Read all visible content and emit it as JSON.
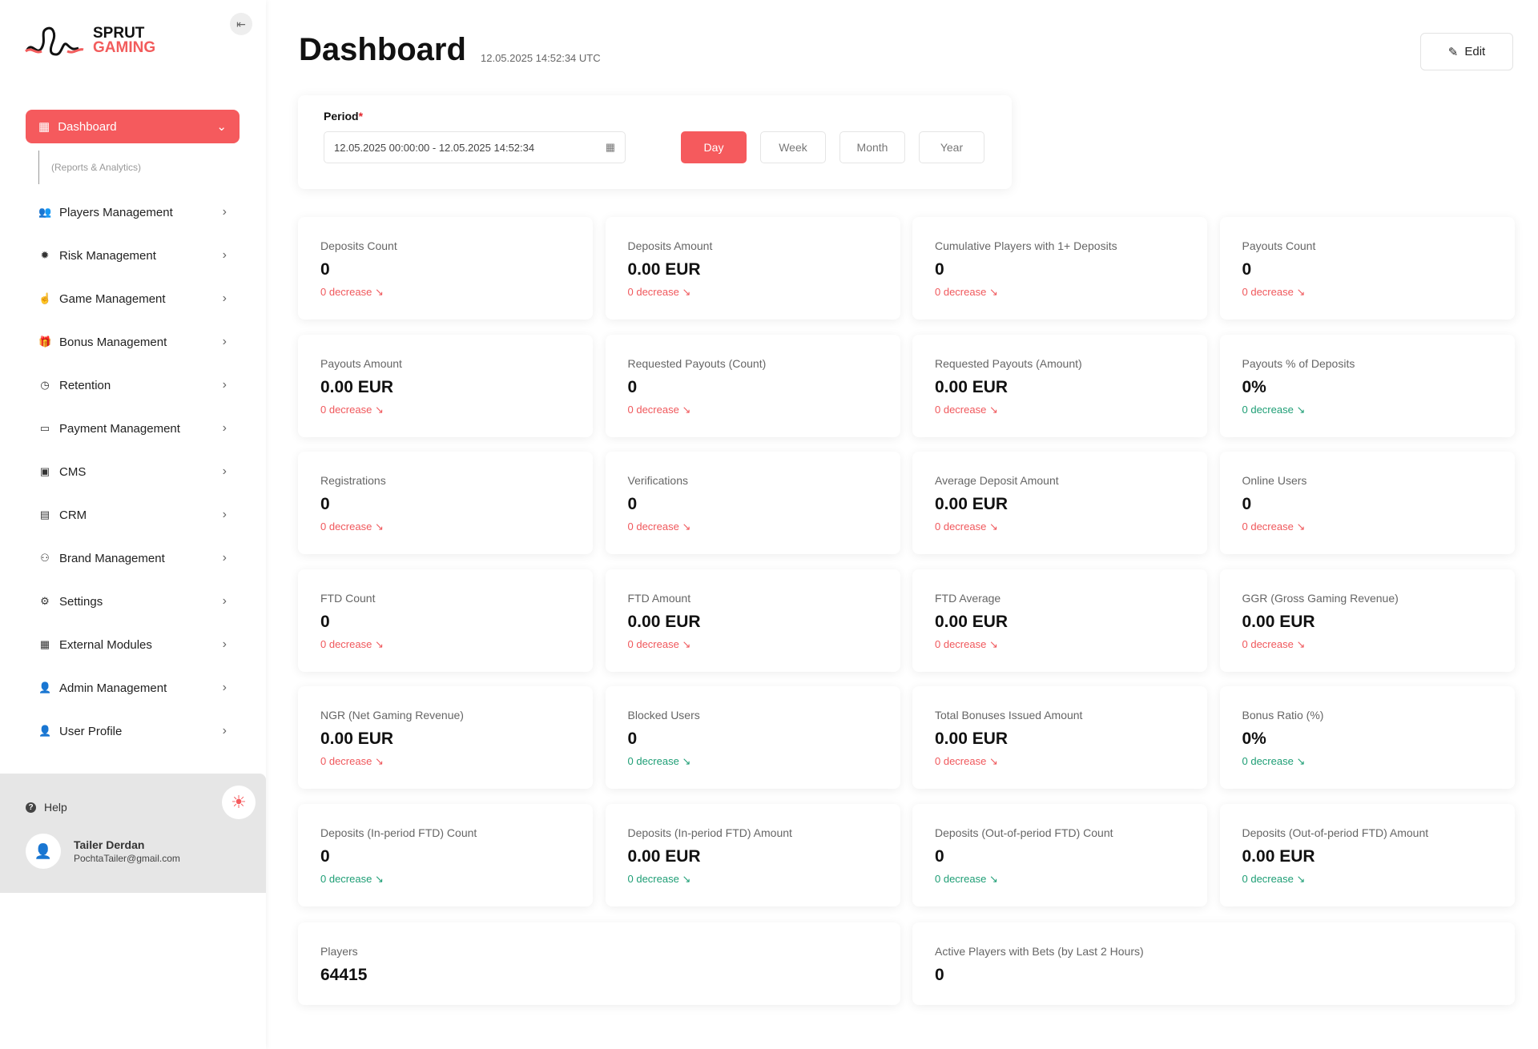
{
  "brand": {
    "line1": "SPRUT",
    "line2": "GAMING"
  },
  "sidebar": {
    "active": {
      "label": "Dashboard",
      "sub": "(Reports & Analytics)"
    },
    "items": [
      {
        "label": "Players Management",
        "icon": "users-icon",
        "g": "👥"
      },
      {
        "label": "Risk Management",
        "icon": "virus-icon",
        "g": "✹"
      },
      {
        "label": "Game Management",
        "icon": "hand-pointer-icon",
        "g": "☝"
      },
      {
        "label": "Bonus Management",
        "icon": "gift-icon",
        "g": "🎁"
      },
      {
        "label": "Retention",
        "icon": "clock-icon",
        "g": "◷"
      },
      {
        "label": "Payment Management",
        "icon": "credit-card-icon",
        "g": "▭"
      },
      {
        "label": "CMS",
        "icon": "cms-icon",
        "g": "▣"
      },
      {
        "label": "CRM",
        "icon": "clipboard-icon",
        "g": "▤"
      },
      {
        "label": "Brand Management",
        "icon": "brand-icon",
        "g": "⚇"
      },
      {
        "label": "Settings",
        "icon": "gears-icon",
        "g": "⚙"
      },
      {
        "label": "External Modules",
        "icon": "grid-icon",
        "g": "▦"
      },
      {
        "label": "Admin Management",
        "icon": "user-gear-icon",
        "g": "👤"
      },
      {
        "label": "User Profile",
        "icon": "user-icon",
        "g": "👤"
      }
    ],
    "help": "Help",
    "user": {
      "name": "Tailer Derdan",
      "email": "PochtaTailer@gmail.com"
    }
  },
  "header": {
    "title": "Dashboard",
    "timestamp": "12.05.2025 14:52:34 UTC",
    "edit": "Edit"
  },
  "period": {
    "label": "Period",
    "required": "*",
    "value": "12.05.2025 00:00:00 - 12.05.2025 14:52:34",
    "buttons": [
      "Day",
      "Week",
      "Month",
      "Year"
    ],
    "active": "Day"
  },
  "colors": {
    "accent": "#f55a5d",
    "decrease_red": "#f0585c",
    "decrease_green": "#1e9e75"
  },
  "cards": [
    {
      "label": "Deposits Count",
      "value": "0",
      "trend": "0 decrease",
      "tone": "red"
    },
    {
      "label": "Deposits Amount",
      "value": "0.00 EUR",
      "trend": "0 decrease",
      "tone": "red"
    },
    {
      "label": "Cumulative Players with 1+ Deposits",
      "value": "0",
      "trend": "0 decrease",
      "tone": "red"
    },
    {
      "label": "Payouts Count",
      "value": "0",
      "trend": "0 decrease",
      "tone": "red"
    },
    {
      "label": "Payouts Amount",
      "value": "0.00 EUR",
      "trend": "0 decrease",
      "tone": "red"
    },
    {
      "label": "Requested Payouts (Count)",
      "value": "0",
      "trend": "0 decrease",
      "tone": "red"
    },
    {
      "label": "Requested Payouts (Amount)",
      "value": "0.00 EUR",
      "trend": "0 decrease",
      "tone": "red"
    },
    {
      "label": "Payouts % of Deposits",
      "value": "0%",
      "trend": "0 decrease",
      "tone": "green"
    },
    {
      "label": "Registrations",
      "value": "0",
      "trend": "0 decrease",
      "tone": "red"
    },
    {
      "label": "Verifications",
      "value": "0",
      "trend": "0 decrease",
      "tone": "red"
    },
    {
      "label": "Average Deposit Amount",
      "value": "0.00 EUR",
      "trend": "0 decrease",
      "tone": "red"
    },
    {
      "label": "Online Users",
      "value": "0",
      "trend": "0 decrease",
      "tone": "red"
    },
    {
      "label": "FTD Count",
      "value": "0",
      "trend": "0 decrease",
      "tone": "red"
    },
    {
      "label": "FTD Amount",
      "value": "0.00 EUR",
      "trend": "0 decrease",
      "tone": "red"
    },
    {
      "label": "FTD Average",
      "value": "0.00 EUR",
      "trend": "0 decrease",
      "tone": "red"
    },
    {
      "label": "GGR (Gross Gaming Revenue)",
      "value": "0.00 EUR",
      "trend": "0 decrease",
      "tone": "red"
    },
    {
      "label": "NGR (Net Gaming Revenue)",
      "value": "0.00 EUR",
      "trend": "0 decrease",
      "tone": "red"
    },
    {
      "label": "Blocked Users",
      "value": "0",
      "trend": "0 decrease",
      "tone": "green"
    },
    {
      "label": "Total Bonuses Issued Amount",
      "value": "0.00 EUR",
      "trend": "0 decrease",
      "tone": "red"
    },
    {
      "label": "Bonus Ratio (%)",
      "value": "0%",
      "trend": "0 decrease",
      "tone": "green"
    },
    {
      "label": "Deposits (In-period FTD) Count",
      "value": "0",
      "trend": "0 decrease",
      "tone": "green"
    },
    {
      "label": "Deposits (In-period FTD) Amount",
      "value": "0.00 EUR",
      "trend": "0 decrease",
      "tone": "green"
    },
    {
      "label": "Deposits (Out-of-period FTD) Count",
      "value": "0",
      "trend": "0 decrease",
      "tone": "green"
    },
    {
      "label": "Deposits (Out-of-period FTD) Amount",
      "value": "0.00 EUR",
      "trend": "0 decrease",
      "tone": "green"
    }
  ],
  "wide_cards": [
    {
      "label": "Players",
      "value": "64415"
    },
    {
      "label": "Active Players with Bets (by Last 2 Hours)",
      "value": "0"
    }
  ]
}
